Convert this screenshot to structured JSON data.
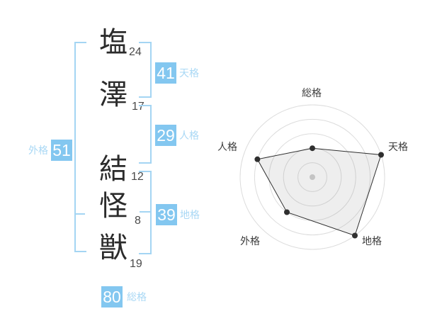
{
  "name_analysis": {
    "characters": [
      {
        "kanji": "塩",
        "strokes": "24"
      },
      {
        "kanji": "澤",
        "strokes": "17"
      },
      {
        "kanji": "結",
        "strokes": "12"
      },
      {
        "kanji": "怪",
        "strokes": "8"
      },
      {
        "kanji": "獣",
        "strokes": "19"
      }
    ],
    "categories": {
      "tenkaku": {
        "label": "天格",
        "value": "41"
      },
      "jinkaku": {
        "label": "人格",
        "value": "29"
      },
      "chikaku": {
        "label": "地格",
        "value": "39"
      },
      "gaikaku": {
        "label": "外格",
        "value": "51"
      },
      "soukaku": {
        "label": "総格",
        "value": "80"
      }
    }
  },
  "colors": {
    "badge_blue": "#83c7f0",
    "bracket_blue": "#a4d5f3",
    "label_blue": "#a9d8f5",
    "ink": "#2b2b2b"
  },
  "chart_data": {
    "type": "radar",
    "title": "",
    "categories": [
      "総格",
      "天格",
      "地格",
      "外格",
      "人格"
    ],
    "values": [
      2,
      5,
      5,
      3,
      4
    ],
    "max": 5,
    "rings": 5,
    "grid": "concentric-circles",
    "legend": "none",
    "grid_color": "#dcdcdc",
    "line_color": "#2f2f2f",
    "point_color": "#2f2f2f",
    "center_dot_color": "#c4c4c4",
    "axis_labels_color": "#3c3c3c",
    "fill": "rgba(150,150,150,0.16)"
  }
}
